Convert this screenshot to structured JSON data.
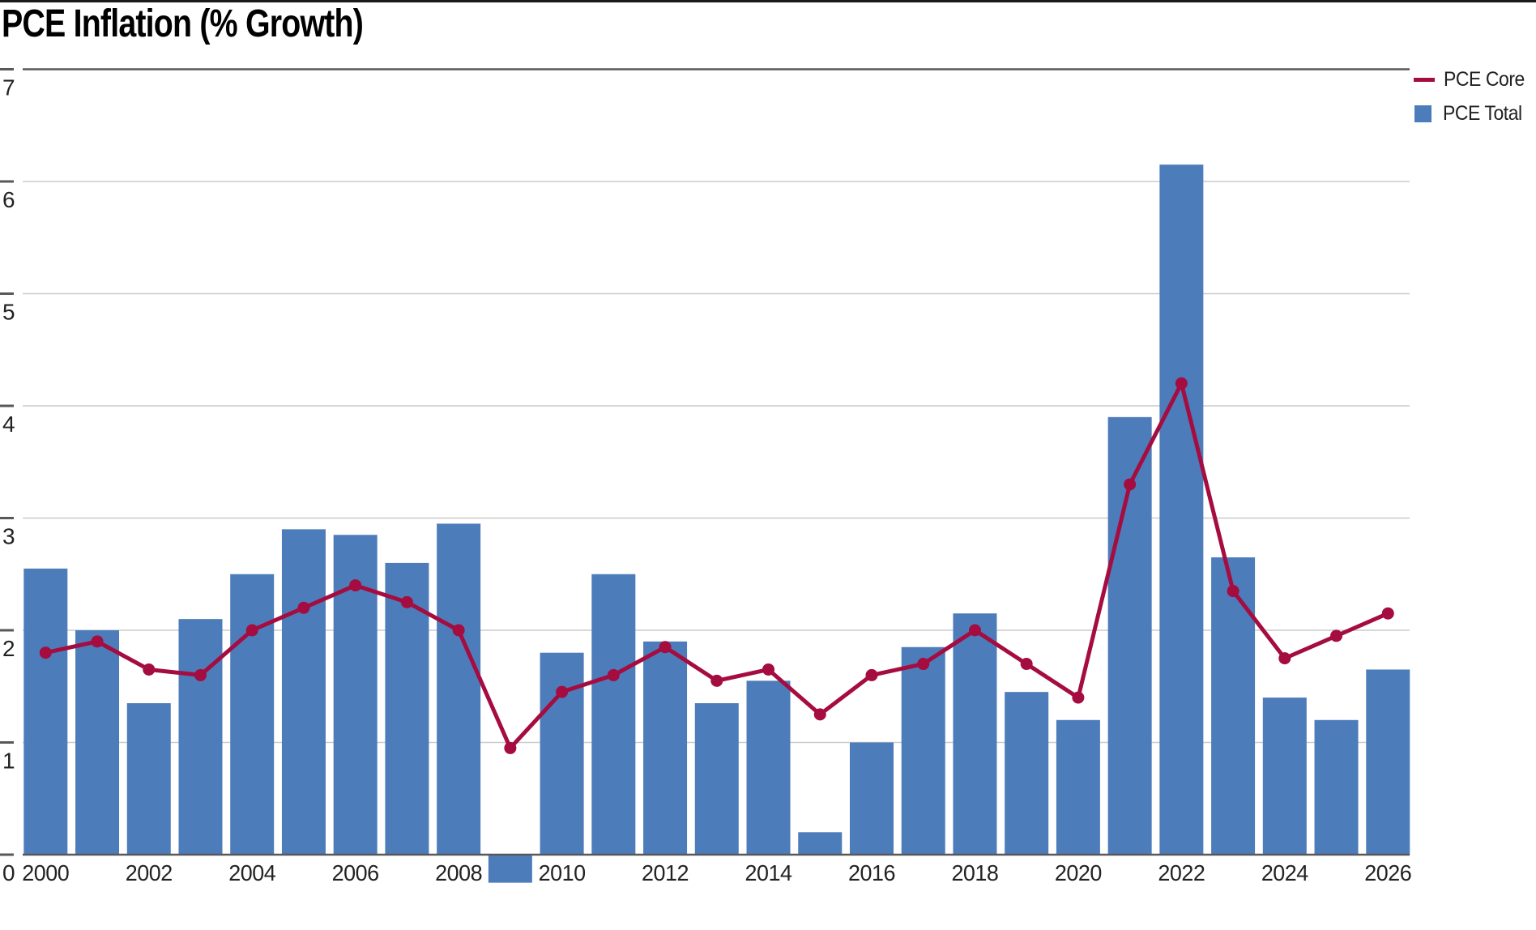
{
  "title": "PCE Inflation (% Growth)",
  "legend": [
    {
      "label": "PCE Core",
      "type": "line",
      "color": "#a50c3f"
    },
    {
      "label": "PCE Total",
      "type": "bar",
      "color": "#4d7cba"
    }
  ],
  "colors": {
    "bar": "#4d7cba",
    "line": "#a50c3f",
    "grid_light": "#cbcbcb",
    "grid_dark": "#58585a",
    "text": "#222222",
    "top_border": "#1a1a1a"
  },
  "chart_data": {
    "type": "bar+line",
    "title": "PCE Inflation (% Growth)",
    "x": [
      2000,
      2001,
      2002,
      2003,
      2004,
      2005,
      2006,
      2007,
      2008,
      2009,
      2010,
      2011,
      2012,
      2013,
      2014,
      2015,
      2016,
      2017,
      2018,
      2019,
      2020,
      2021,
      2022,
      2023,
      2024,
      2025,
      2026
    ],
    "series": [
      {
        "name": "PCE Total",
        "type": "bar",
        "color": "#4d7cba",
        "values": [
          2.55,
          2.0,
          1.35,
          2.1,
          2.5,
          2.9,
          2.85,
          2.6,
          2.95,
          -0.25,
          1.8,
          2.5,
          1.9,
          1.35,
          1.55,
          0.2,
          1.0,
          1.85,
          2.15,
          1.45,
          1.2,
          3.9,
          6.15,
          2.65,
          1.4,
          1.2,
          1.65
        ]
      },
      {
        "name": "PCE Core",
        "type": "line",
        "color": "#a50c3f",
        "values": [
          1.8,
          1.9,
          1.65,
          1.6,
          2.0,
          2.2,
          2.4,
          2.25,
          2.0,
          0.95,
          1.45,
          1.6,
          1.85,
          1.55,
          1.65,
          1.25,
          1.6,
          1.7,
          2.0,
          1.7,
          1.4,
          3.3,
          4.2,
          2.35,
          1.75,
          1.95,
          2.15
        ]
      }
    ],
    "xticks": [
      2000,
      2002,
      2004,
      2006,
      2008,
      2010,
      2012,
      2014,
      2016,
      2018,
      2020,
      2022,
      2024,
      2026
    ],
    "yticks": [
      0,
      1,
      2,
      3,
      4,
      5,
      6,
      7
    ],
    "ylim": [
      -0.3,
      7
    ],
    "grid": "horizontal",
    "legend_position": "top-right"
  }
}
